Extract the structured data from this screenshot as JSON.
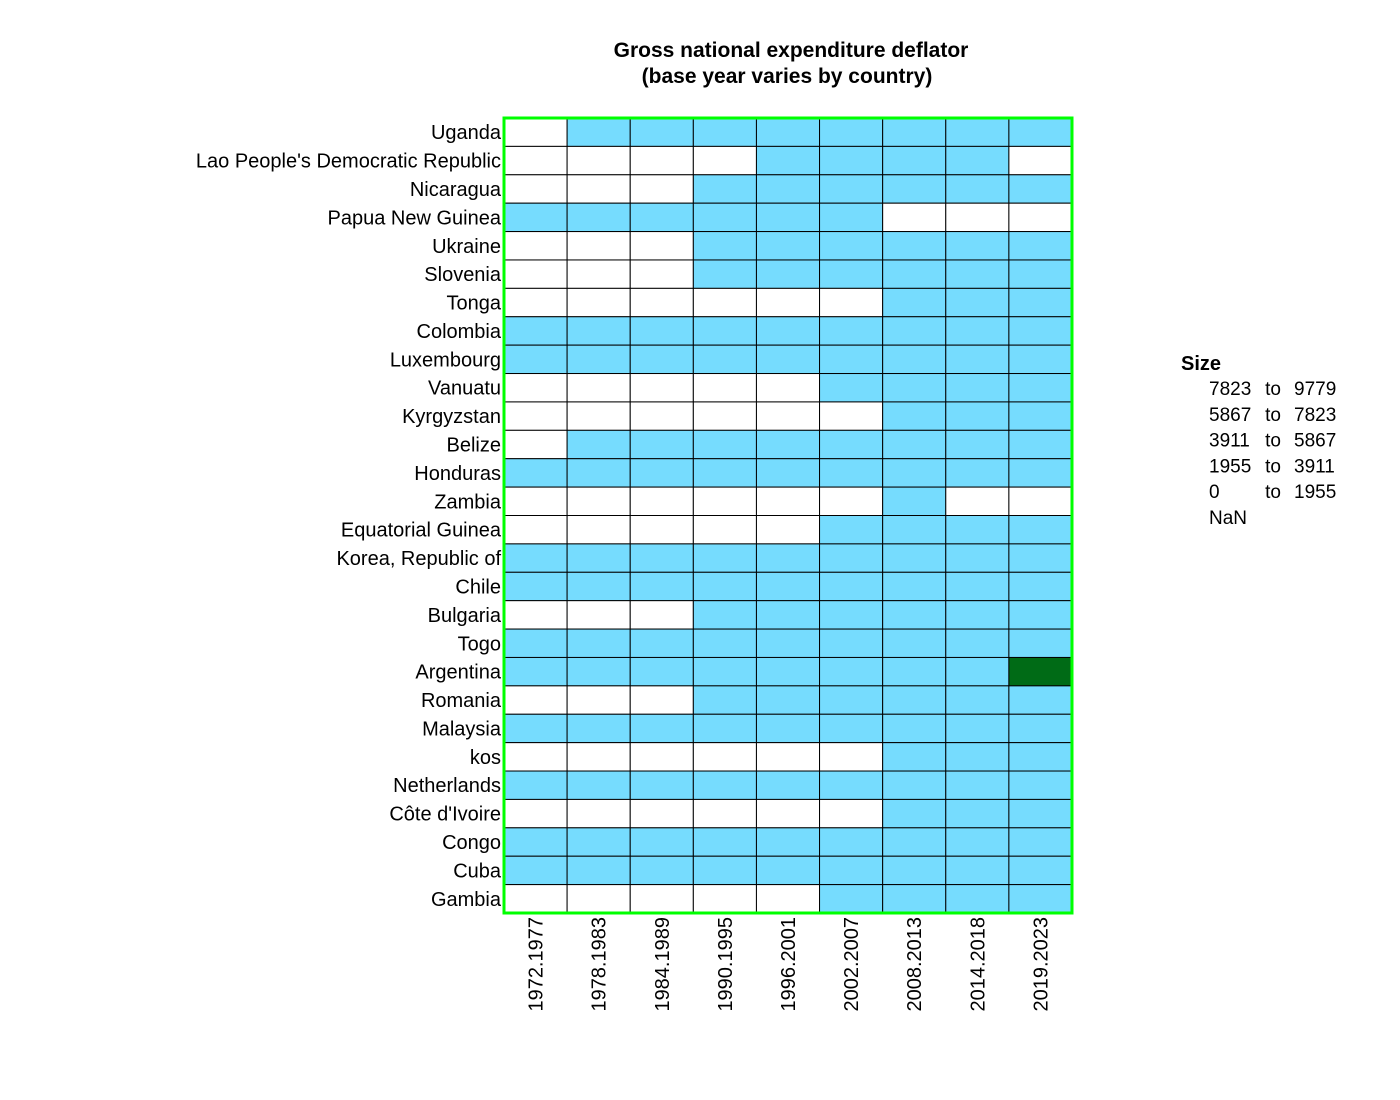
{
  "chart_data": {
    "type": "heatmap",
    "title_line1": "Gross national expenditure deflator",
    "title_line2": "(base year varies by country)",
    "columns": [
      "1972.1977",
      "1978.1983",
      "1984.1989",
      "1990.1995",
      "1996.2001",
      "2002.2007",
      "2008.2013",
      "2014.2018",
      "2019.2023"
    ],
    "rows": [
      "Uganda",
      "Lao People's Democratic Republic",
      "Nicaragua",
      "Papua New Guinea",
      "Ukraine",
      "Slovenia",
      "Tonga",
      "Colombia",
      "Luxembourg",
      "Vanuatu",
      "Kyrgyzstan",
      "Belize",
      "Honduras",
      "Zambia",
      "Equatorial Guinea",
      "Korea, Republic of",
      "Chile",
      "Bulgaria",
      "Togo",
      "Argentina",
      "Romania",
      "Malaysia",
      "kos",
      "Netherlands",
      "Côte d'Ivoire",
      "Congo",
      "Cuba",
      "Gambia"
    ],
    "bins": [
      [
        5,
        1,
        1,
        1,
        1,
        1,
        1,
        1,
        1
      ],
      [
        5,
        5,
        5,
        5,
        1,
        1,
        1,
        1,
        5
      ],
      [
        5,
        5,
        5,
        1,
        1,
        1,
        1,
        1,
        1
      ],
      [
        1,
        1,
        1,
        1,
        1,
        1,
        5,
        5,
        5
      ],
      [
        5,
        5,
        5,
        1,
        1,
        1,
        1,
        1,
        1
      ],
      [
        5,
        5,
        5,
        1,
        1,
        1,
        1,
        1,
        1
      ],
      [
        5,
        5,
        5,
        5,
        5,
        5,
        1,
        1,
        1
      ],
      [
        1,
        1,
        1,
        1,
        1,
        1,
        1,
        1,
        1
      ],
      [
        1,
        1,
        1,
        1,
        1,
        1,
        1,
        1,
        1
      ],
      [
        5,
        5,
        5,
        5,
        5,
        1,
        1,
        1,
        1
      ],
      [
        5,
        5,
        5,
        5,
        5,
        5,
        1,
        1,
        1
      ],
      [
        5,
        1,
        1,
        1,
        1,
        1,
        1,
        1,
        1
      ],
      [
        1,
        1,
        1,
        1,
        1,
        1,
        1,
        1,
        1
      ],
      [
        5,
        5,
        5,
        5,
        5,
        5,
        1,
        5,
        5
      ],
      [
        5,
        5,
        5,
        5,
        5,
        1,
        1,
        1,
        1
      ],
      [
        1,
        1,
        1,
        1,
        1,
        1,
        1,
        1,
        1
      ],
      [
        1,
        1,
        1,
        1,
        1,
        1,
        1,
        1,
        1
      ],
      [
        5,
        5,
        5,
        1,
        1,
        1,
        1,
        1,
        1
      ],
      [
        1,
        1,
        1,
        1,
        1,
        1,
        1,
        1,
        1
      ],
      [
        1,
        1,
        1,
        1,
        1,
        1,
        1,
        1,
        4
      ],
      [
        5,
        5,
        5,
        1,
        1,
        1,
        1,
        1,
        1
      ],
      [
        1,
        1,
        1,
        1,
        1,
        1,
        1,
        1,
        1
      ],
      [
        5,
        5,
        5,
        5,
        5,
        5,
        1,
        1,
        1
      ],
      [
        1,
        1,
        1,
        1,
        1,
        1,
        1,
        1,
        1
      ],
      [
        5,
        5,
        5,
        5,
        5,
        5,
        1,
        1,
        1
      ],
      [
        1,
        1,
        1,
        1,
        1,
        1,
        1,
        1,
        1
      ],
      [
        1,
        1,
        1,
        1,
        1,
        1,
        1,
        1,
        1
      ],
      [
        5,
        5,
        5,
        5,
        5,
        1,
        1,
        1,
        1
      ]
    ],
    "legend": {
      "title": "Size",
      "entries": [
        {
          "low": "7823",
          "to": "to",
          "high": "9779"
        },
        {
          "low": "5867",
          "to": "to",
          "high": "7823"
        },
        {
          "low": "3911",
          "to": "to",
          "high": "5867"
        },
        {
          "low": "1955",
          "to": "to",
          "high": "3911"
        },
        {
          "low": "0",
          "to": "to",
          "high": "1955"
        },
        {
          "low": "NaN",
          "to": "",
          "high": ""
        }
      ]
    },
    "colors": {
      "bin0": "#ffffff",
      "bin1": "#76dcfe",
      "bin4": "#006b16",
      "bin5": "#ffffff",
      "frame": "#00ff00",
      "cell_border": "#000000"
    }
  }
}
